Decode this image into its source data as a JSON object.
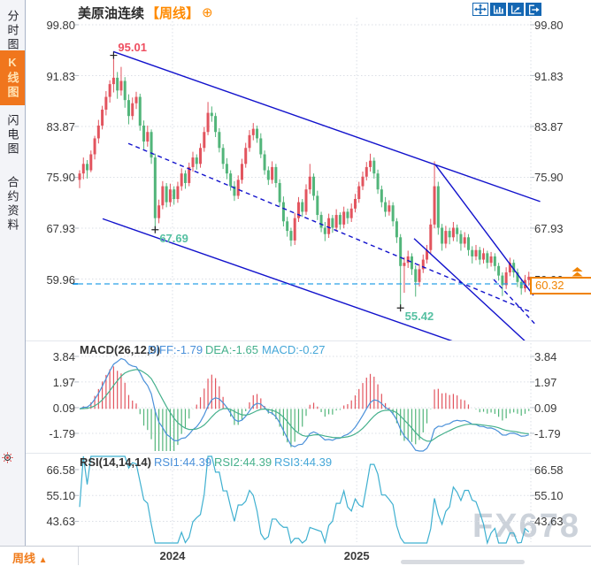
{
  "sidebar": {
    "items": [
      {
        "label": "分时图",
        "selected": false
      },
      {
        "label": "K线图",
        "selected": true
      },
      {
        "label": "闪电图",
        "selected": false
      },
      {
        "label": "合约资料",
        "selected": false
      }
    ]
  },
  "header": {
    "title": "美原油连续",
    "period_tag": "【周线】",
    "add_icon": "⊕",
    "toolbar_icons": [
      "move-tool",
      "axis-fit-tool",
      "axis-pointer-tool",
      "pan-latest-tool"
    ]
  },
  "main_chart": {
    "y_axis_labels": [
      "99.80",
      "91.83",
      "83.87",
      "75.90",
      "67.93",
      "59.96"
    ],
    "annotations": {
      "high": "95.01",
      "low1": "67.69",
      "low2": "55.42"
    },
    "price_box": "60.32",
    "x_axis_labels": [
      "2024",
      "2025"
    ]
  },
  "macd_panel": {
    "title": "MACD(26,12,9)",
    "diff_label": "DIFF:-1.79",
    "dea_label": "DEA:-1.65",
    "macd_label": "MACD:-0.27",
    "y_axis_labels": [
      "3.84",
      "1.97",
      "0.09",
      "-1.79"
    ]
  },
  "rsi_panel": {
    "title": "RSI(14,14,14)",
    "rsi1_label": "RSI1:44.39",
    "rsi2_label": "RSI2:44.39",
    "rsi3_label": "RSI3:44.39",
    "y_axis_labels": [
      "66.58",
      "55.10",
      "43.63"
    ]
  },
  "bottom_bar": {
    "period_label": "周线",
    "arrow": "▲"
  },
  "watermark": "FX678",
  "colors": {
    "up_candle": "#e2545e",
    "down_candle": "#52b57a",
    "trendline": "#1212cc",
    "last_price_line": "#2ba0e8",
    "accent_orange": "#f08300",
    "high_label": "#ef4e60",
    "low_label": "#56c0a2",
    "diff_line": "#4a90d9",
    "dea_line": "#45b08c",
    "rsi_line": "#3fb0d0",
    "grid": "#dbdfe6"
  },
  "chart_data": {
    "type": "candlestick",
    "symbol": "美原油连续",
    "timeframe": "周线",
    "price_gridlines": [
      99.8,
      91.83,
      83.87,
      75.9,
      67.93,
      59.96
    ],
    "macd_gridlines": [
      3.84,
      1.97,
      0.09,
      -1.79
    ],
    "rsi_gridlines": [
      66.58,
      55.1,
      43.63
    ],
    "year_ticks": [
      {
        "label": "2024",
        "idx": 24.6
      },
      {
        "label": "2025",
        "idx": 73.4
      }
    ],
    "last_price": 60.32,
    "indicator_values": {
      "DIFF": -1.79,
      "DEA": -1.65,
      "MACD": -0.27,
      "RSI1": 44.39,
      "RSI2": 44.39,
      "RSI3": 44.39
    },
    "annotations": {
      "high": {
        "idx": 9,
        "price": 95.01,
        "label": "95.01"
      },
      "lows": [
        {
          "idx": 20,
          "price": 67.69,
          "label": "67.69"
        },
        {
          "idx": 85,
          "price": 55.42,
          "label": "55.42"
        }
      ]
    },
    "trendlines": [
      {
        "name": "upper-channel",
        "from_idx": 8.9,
        "from_price": 95.6,
        "to_idx": 122.0,
        "to_price": 72.1,
        "dashed": false
      },
      {
        "name": "lower-channel",
        "from_idx": 6.1,
        "from_price": 69.4,
        "to_idx": 98.9,
        "to_price": 50.2,
        "dashed": false
      },
      {
        "name": "mid-channel-dashed",
        "from_idx": 12.9,
        "from_price": 81.2,
        "to_idx": 119.1,
        "to_price": 54.9,
        "dashed": true
      },
      {
        "name": "steep-upper",
        "from_idx": 94.2,
        "from_price": 77.9,
        "to_idx": 120.2,
        "to_price": 57.4,
        "dashed": false
      },
      {
        "name": "steep-lower",
        "from_idx": 88.6,
        "from_price": 66.3,
        "to_idx": 118.6,
        "to_price": 49.9,
        "dashed": false
      },
      {
        "name": "steep-mid-dashed",
        "from_idx": 109.7,
        "from_price": 59.9,
        "to_idx": 120.5,
        "to_price": 53.0,
        "dashed": true
      }
    ],
    "candles_ohlc": [
      [
        75.5,
        77.0,
        74.2,
        76.5
      ],
      [
        76.5,
        79.0,
        75.6,
        78.0
      ],
      [
        78.0,
        78.6,
        75.7,
        77.0
      ],
      [
        77.0,
        80.1,
        76.7,
        79.5
      ],
      [
        79.5,
        82.4,
        78.7,
        82.0
      ],
      [
        82.0,
        84.9,
        81.2,
        84.0
      ],
      [
        84.0,
        87.1,
        83.4,
        86.5
      ],
      [
        86.5,
        89.4,
        85.6,
        88.5
      ],
      [
        88.5,
        91.1,
        87.6,
        90.5
      ],
      [
        90.5,
        95.01,
        89.2,
        91.5
      ],
      [
        91.5,
        92.4,
        88.2,
        89.5
      ],
      [
        89.5,
        93.2,
        88.7,
        91.0
      ],
      [
        91.0,
        91.6,
        86.8,
        88.0
      ],
      [
        88.0,
        88.9,
        84.2,
        85.5
      ],
      [
        85.5,
        88.4,
        84.9,
        87.5
      ],
      [
        87.5,
        89.3,
        86.6,
        88.5
      ],
      [
        88.5,
        89.0,
        83.2,
        84.0
      ],
      [
        84.0,
        84.8,
        80.3,
        81.5
      ],
      [
        81.5,
        84.0,
        80.7,
        83.0
      ],
      [
        83.0,
        83.4,
        78.0,
        79.0
      ],
      [
        79.0,
        79.6,
        67.69,
        69.5
      ],
      [
        69.5,
        72.4,
        68.7,
        71.5
      ],
      [
        71.5,
        75.3,
        70.9,
        74.5
      ],
      [
        74.5,
        75.0,
        71.2,
        72.0
      ],
      [
        72.0,
        74.9,
        71.3,
        74.0
      ],
      [
        74.0,
        74.5,
        71.6,
        72.5
      ],
      [
        72.5,
        75.2,
        71.9,
        74.5
      ],
      [
        74.5,
        77.3,
        73.8,
        76.5
      ],
      [
        76.5,
        77.0,
        74.1,
        75.0
      ],
      [
        75.0,
        78.2,
        74.5,
        77.5
      ],
      [
        77.5,
        79.9,
        76.8,
        79.0
      ],
      [
        79.0,
        79.5,
        77.1,
        78.0
      ],
      [
        78.0,
        81.2,
        77.4,
        80.5
      ],
      [
        80.5,
        83.8,
        79.9,
        83.0
      ],
      [
        83.0,
        87.7,
        82.5,
        86.0
      ],
      [
        86.0,
        87.0,
        84.6,
        85.5
      ],
      [
        85.5,
        86.0,
        82.2,
        83.0
      ],
      [
        83.0,
        83.6,
        79.8,
        80.5
      ],
      [
        80.5,
        81.1,
        77.2,
        78.0
      ],
      [
        78.0,
        78.9,
        75.6,
        76.5
      ],
      [
        76.5,
        77.0,
        73.8,
        74.5
      ],
      [
        74.5,
        75.3,
        72.2,
        73.0
      ],
      [
        73.0,
        76.2,
        72.5,
        75.5
      ],
      [
        75.5,
        78.8,
        74.9,
        78.0
      ],
      [
        78.0,
        81.3,
        77.4,
        80.5
      ],
      [
        80.5,
        83.3,
        79.9,
        82.5
      ],
      [
        82.5,
        84.4,
        81.7,
        83.5
      ],
      [
        83.5,
        84.0,
        81.3,
        82.0
      ],
      [
        82.0,
        82.8,
        78.9,
        79.5
      ],
      [
        79.5,
        80.1,
        76.3,
        77.0
      ],
      [
        77.0,
        77.6,
        74.7,
        75.5
      ],
      [
        75.5,
        78.4,
        74.9,
        77.5
      ],
      [
        77.5,
        78.0,
        74.3,
        75.0
      ],
      [
        75.0,
        75.6,
        71.3,
        72.0
      ],
      [
        72.0,
        72.9,
        68.2,
        69.0
      ],
      [
        69.0,
        69.7,
        66.6,
        67.5
      ],
      [
        67.5,
        68.0,
        65.1,
        66.0
      ],
      [
        66.0,
        70.3,
        65.3,
        69.5
      ],
      [
        69.5,
        72.8,
        68.9,
        72.0
      ],
      [
        72.0,
        72.5,
        69.7,
        70.5
      ],
      [
        70.5,
        74.8,
        70.0,
        74.0
      ],
      [
        74.0,
        78.0,
        73.3,
        76.0
      ],
      [
        76.0,
        76.5,
        72.3,
        73.0
      ],
      [
        73.0,
        73.8,
        69.2,
        70.0
      ],
      [
        70.0,
        70.5,
        67.3,
        68.0
      ],
      [
        68.0,
        68.9,
        65.9,
        67.0
      ],
      [
        67.0,
        70.2,
        66.4,
        69.5
      ],
      [
        69.5,
        70.0,
        67.2,
        68.0
      ],
      [
        68.0,
        70.9,
        67.4,
        70.0
      ],
      [
        70.0,
        70.4,
        67.7,
        68.5
      ],
      [
        68.5,
        71.3,
        67.9,
        70.5
      ],
      [
        70.5,
        71.0,
        68.6,
        69.5
      ],
      [
        69.5,
        71.8,
        68.9,
        71.0
      ],
      [
        71.0,
        73.3,
        70.4,
        72.5
      ],
      [
        72.5,
        75.2,
        71.9,
        74.5
      ],
      [
        74.5,
        76.8,
        73.9,
        76.0
      ],
      [
        76.0,
        78.3,
        75.4,
        77.5
      ],
      [
        77.5,
        79.6,
        76.8,
        78.5
      ],
      [
        78.5,
        79.0,
        75.7,
        76.5
      ],
      [
        76.5,
        77.1,
        73.3,
        74.0
      ],
      [
        74.0,
        74.6,
        71.2,
        72.0
      ],
      [
        72.0,
        72.8,
        69.7,
        70.5
      ],
      [
        70.5,
        72.3,
        69.9,
        71.5
      ],
      [
        71.5,
        72.0,
        68.2,
        69.0
      ],
      [
        69.0,
        69.5,
        65.6,
        66.5
      ],
      [
        66.5,
        67.0,
        55.42,
        62.0
      ],
      [
        62.0,
        63.4,
        57.8,
        62.5
      ],
      [
        62.5,
        64.4,
        61.7,
        63.5
      ],
      [
        63.5,
        64.0,
        60.6,
        61.5
      ],
      [
        61.5,
        62.1,
        57.2,
        59.5
      ],
      [
        59.5,
        62.3,
        58.8,
        61.5
      ],
      [
        61.5,
        63.8,
        60.9,
        63.0
      ],
      [
        63.0,
        65.3,
        62.4,
        64.5
      ],
      [
        64.5,
        69.4,
        63.9,
        68.5
      ],
      [
        68.5,
        78.4,
        67.9,
        74.5
      ],
      [
        74.5,
        75.2,
        66.9,
        68.0
      ],
      [
        68.0,
        68.6,
        64.4,
        65.5
      ],
      [
        65.5,
        68.3,
        64.8,
        67.5
      ],
      [
        67.5,
        68.0,
        65.4,
        66.5
      ],
      [
        66.5,
        68.9,
        65.9,
        68.0
      ],
      [
        68.0,
        68.5,
        65.8,
        67.0
      ],
      [
        67.0,
        67.6,
        64.4,
        65.5
      ],
      [
        65.5,
        67.3,
        64.9,
        66.5
      ],
      [
        66.5,
        67.0,
        63.6,
        64.5
      ],
      [
        64.5,
        65.1,
        62.4,
        63.5
      ],
      [
        63.5,
        65.3,
        62.9,
        64.5
      ],
      [
        64.5,
        65.0,
        62.2,
        63.0
      ],
      [
        63.0,
        64.8,
        62.4,
        64.0
      ],
      [
        64.0,
        64.4,
        61.6,
        62.5
      ],
      [
        62.5,
        64.2,
        61.9,
        63.5
      ],
      [
        63.5,
        64.0,
        61.2,
        62.0
      ],
      [
        62.0,
        62.5,
        59.7,
        60.5
      ],
      [
        60.5,
        61.0,
        57.3,
        59.0
      ],
      [
        59.0,
        61.8,
        58.4,
        61.0
      ],
      [
        61.0,
        63.3,
        60.4,
        62.5
      ],
      [
        62.5,
        63.0,
        60.2,
        61.0
      ],
      [
        61.0,
        61.6,
        58.7,
        59.5
      ],
      [
        59.5,
        60.0,
        57.5,
        58.5
      ],
      [
        58.5,
        60.6,
        57.9,
        59.8
      ],
      [
        59.8,
        61.1,
        58.9,
        60.32
      ]
    ]
  }
}
